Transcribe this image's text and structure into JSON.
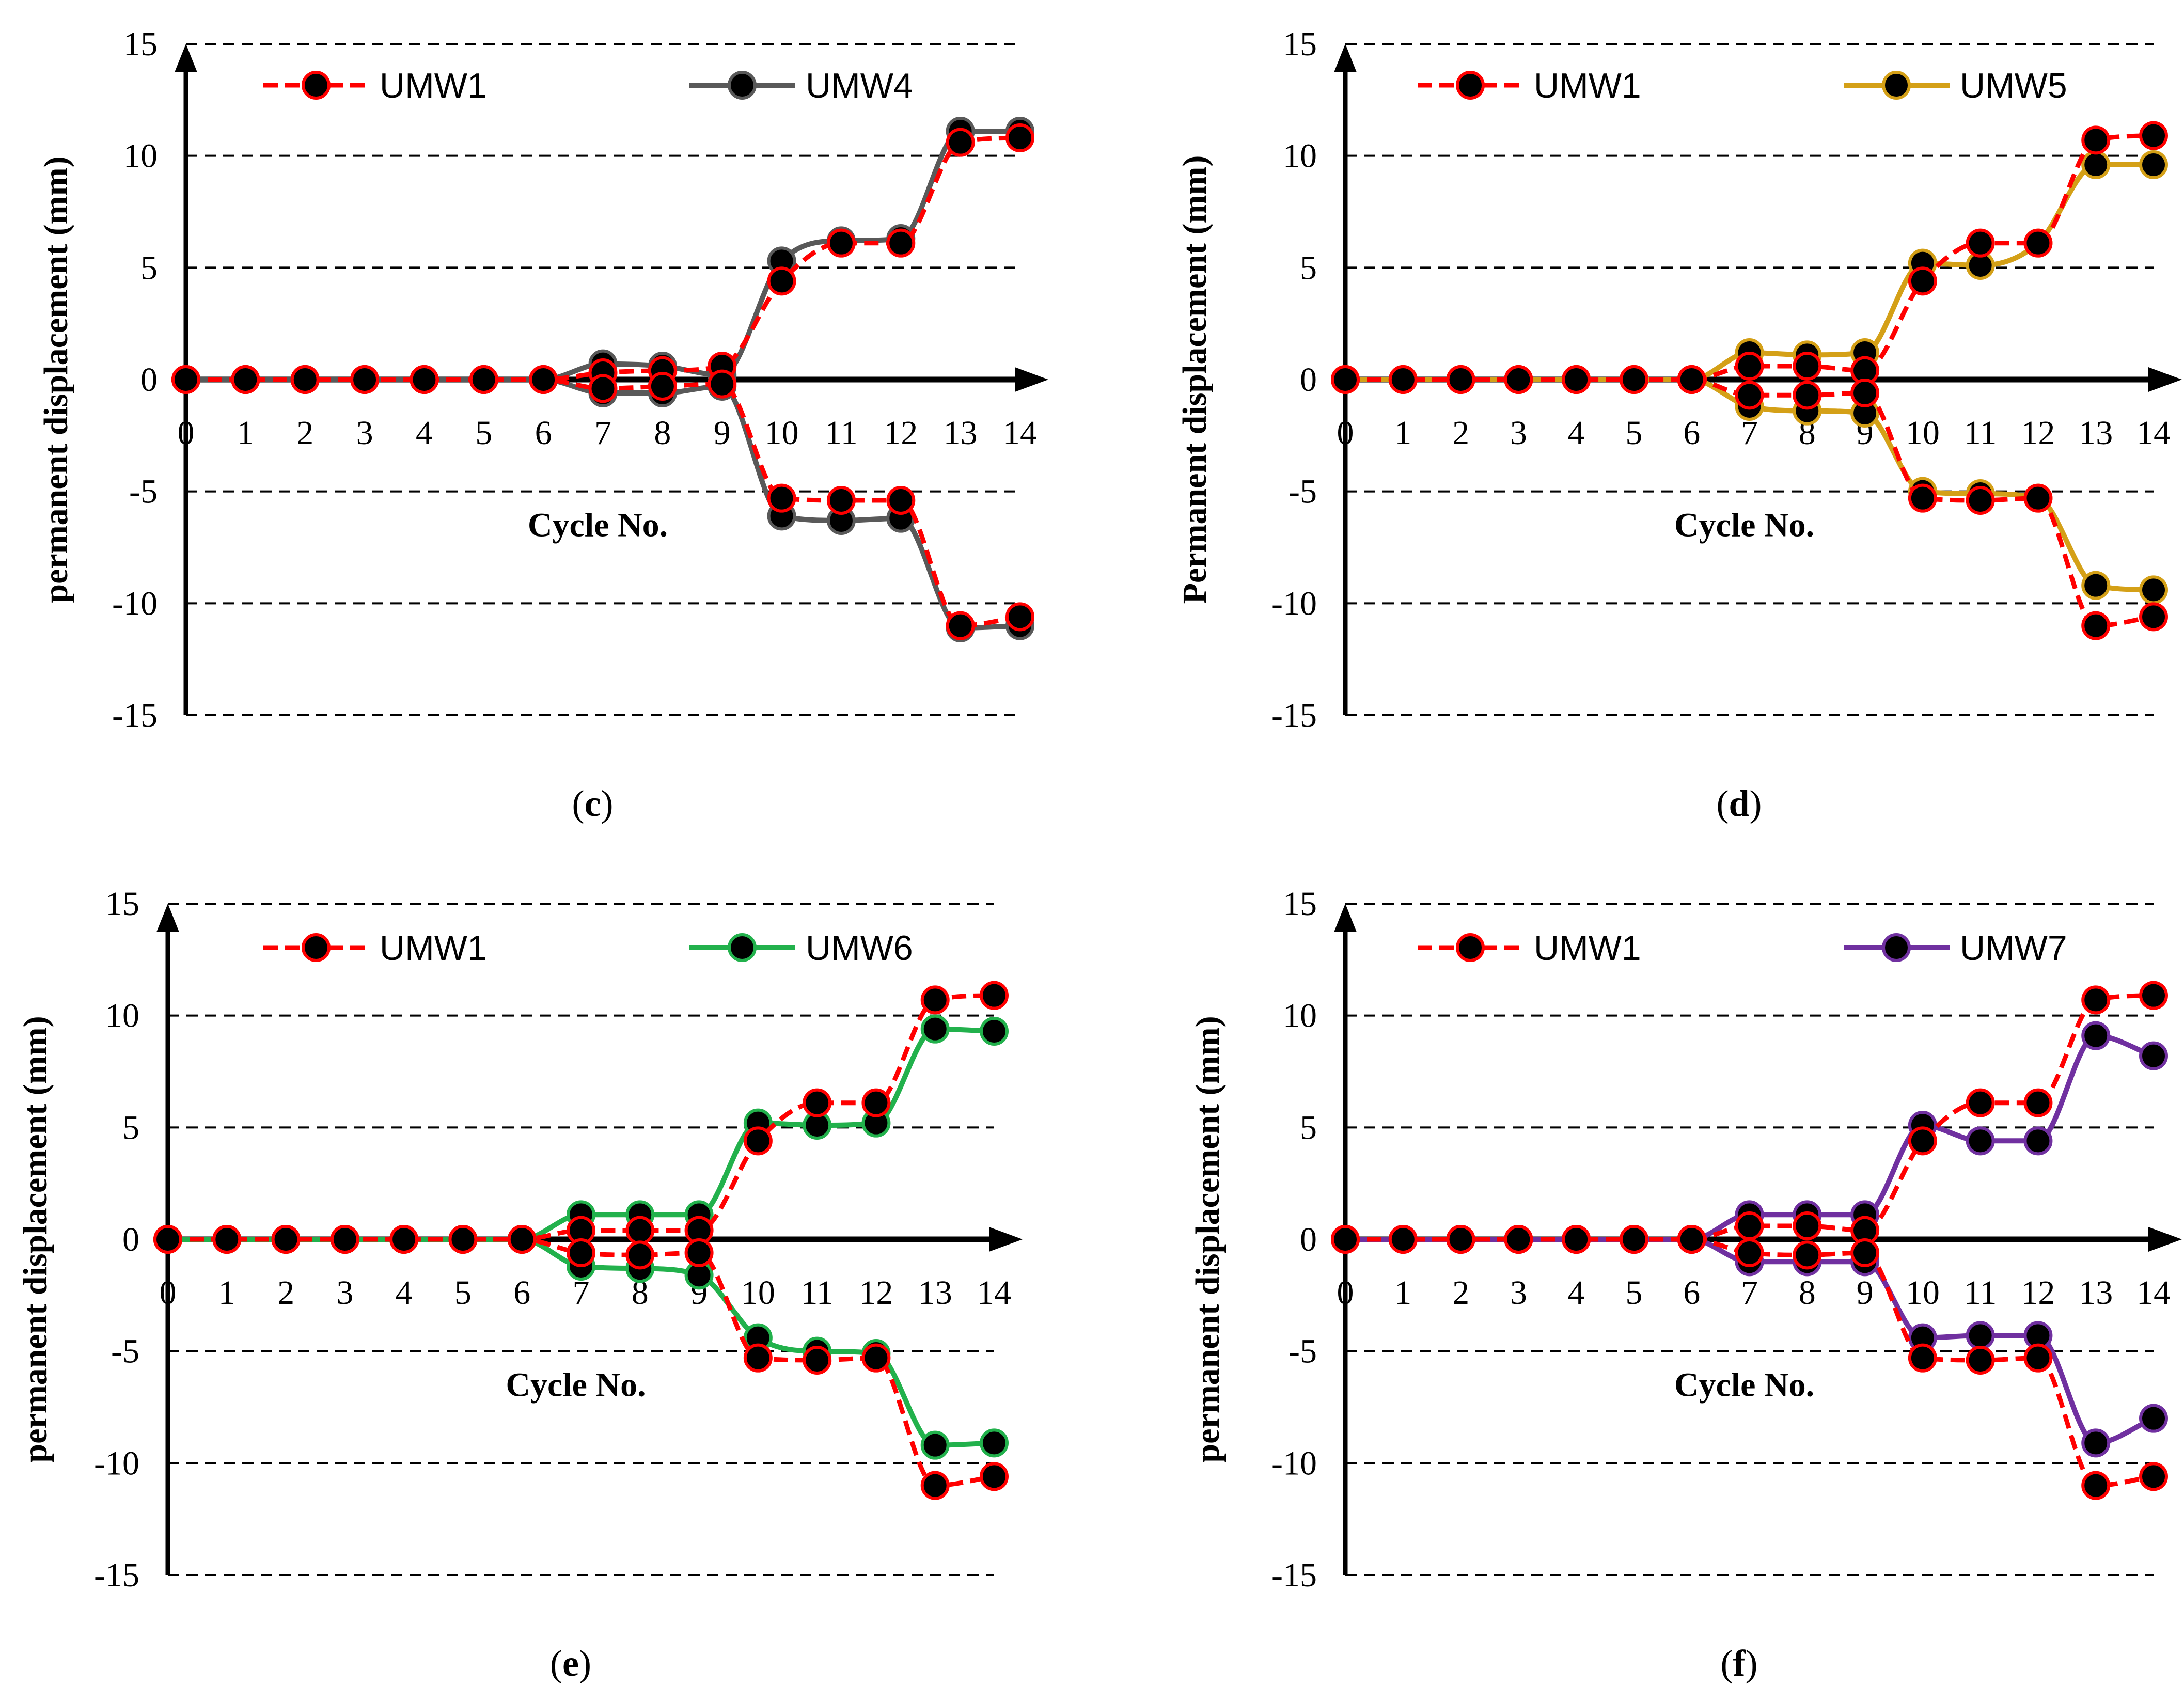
{
  "figure": {
    "panel_labels": [
      {
        "open": "(",
        "letter": "c",
        "close": ")"
      },
      {
        "open": "(",
        "letter": "d",
        "close": ")"
      },
      {
        "open": "(",
        "letter": "e",
        "close": ")"
      },
      {
        "open": "(",
        "letter": "f",
        "close": ")"
      }
    ]
  },
  "chart_data": [
    {
      "type": "line",
      "panel": "c",
      "xlabel": "Cycle No.",
      "ylabel": "permanent displacement (mm)",
      "xlim": [
        0,
        14
      ],
      "ylim": [
        -15,
        15
      ],
      "xticks": [
        0,
        1,
        2,
        3,
        4,
        5,
        6,
        7,
        8,
        9,
        10,
        11,
        12,
        13,
        14
      ],
      "yticks": [
        15,
        10,
        5,
        0,
        -5,
        -10,
        -15
      ],
      "grid": "horizontal-dashed",
      "legend": "top-left",
      "x": [
        0,
        1,
        2,
        3,
        4,
        5,
        6,
        7,
        8,
        9,
        10,
        11,
        12,
        13,
        14
      ],
      "series": [
        {
          "name": "UMW1",
          "style": "dashed",
          "color": "#ff0000",
          "marker_color": "#000000",
          "upper": [
            0,
            0,
            0,
            0,
            0,
            0,
            0,
            0.3,
            0.4,
            0.6,
            4.4,
            6.1,
            6.1,
            10.6,
            10.8
          ],
          "lower": [
            0,
            0,
            0,
            0,
            0,
            0,
            0,
            -0.4,
            -0.3,
            -0.2,
            -5.3,
            -5.4,
            -5.4,
            -11,
            -10.6
          ]
        },
        {
          "name": "UMW4",
          "style": "solid",
          "color": "#595959",
          "marker_color": "#000000",
          "upper": [
            0,
            0,
            0,
            0,
            0,
            0,
            0,
            0.7,
            0.6,
            0.2,
            5.3,
            6.2,
            6.3,
            11.1,
            11.1
          ],
          "lower": [
            0,
            0,
            0,
            0,
            0,
            0,
            0,
            -0.6,
            -0.6,
            -0.3,
            -6.1,
            -6.3,
            -6.2,
            -11.1,
            -11
          ]
        }
      ]
    },
    {
      "type": "line",
      "panel": "d",
      "xlabel": "Cycle No.",
      "ylabel": "Permanent displacement (mm)",
      "xlim": [
        0,
        14
      ],
      "ylim": [
        -15,
        15
      ],
      "xticks": [
        0,
        1,
        2,
        3,
        4,
        5,
        6,
        7,
        8,
        9,
        10,
        11,
        12,
        13,
        14
      ],
      "yticks": [
        15,
        10,
        5,
        0,
        -5,
        -10,
        -15
      ],
      "grid": "horizontal-dashed",
      "legend": "top-left",
      "x": [
        0,
        1,
        2,
        3,
        4,
        5,
        6,
        7,
        8,
        9,
        10,
        11,
        12,
        13,
        14
      ],
      "series": [
        {
          "name": "UMW1",
          "style": "dashed",
          "color": "#ff0000",
          "marker_color": "#000000",
          "upper": [
            0,
            0,
            0,
            0,
            0,
            0,
            0,
            0.6,
            0.6,
            0.4,
            4.4,
            6.1,
            6.1,
            10.7,
            10.9
          ],
          "lower": [
            0,
            0,
            0,
            0,
            0,
            0,
            0,
            -0.7,
            -0.7,
            -0.6,
            -5.3,
            -5.4,
            -5.3,
            -11,
            -10.6
          ]
        },
        {
          "name": "UMW5",
          "style": "solid",
          "color": "#d4a017",
          "marker_color": "#000000",
          "upper": [
            0,
            0,
            0,
            0,
            0,
            0,
            0,
            1.2,
            1.1,
            1.2,
            5.2,
            5.1,
            6.1,
            9.6,
            9.6
          ],
          "lower": [
            0,
            0,
            0,
            0,
            0,
            0,
            0,
            -1.2,
            -1.4,
            -1.5,
            -5,
            -5.1,
            -5.3,
            -9.2,
            -9.4
          ]
        }
      ]
    },
    {
      "type": "line",
      "panel": "e",
      "xlabel": "Cycle No.",
      "ylabel": "permanent displacement (mm)",
      "xlim": [
        0,
        14
      ],
      "ylim": [
        -15,
        15
      ],
      "xticks": [
        0,
        1,
        2,
        3,
        4,
        5,
        6,
        7,
        8,
        9,
        10,
        11,
        12,
        13,
        14
      ],
      "yticks": [
        15,
        10,
        5,
        0,
        -5,
        -10,
        -15
      ],
      "grid": "horizontal-dashed",
      "legend": "top-left",
      "x": [
        0,
        1,
        2,
        3,
        4,
        5,
        6,
        7,
        8,
        9,
        10,
        11,
        12,
        13,
        14
      ],
      "series": [
        {
          "name": "UMW1",
          "style": "dashed",
          "color": "#ff0000",
          "marker_color": "#000000",
          "upper": [
            0,
            0,
            0,
            0,
            0,
            0,
            0,
            0.4,
            0.4,
            0.4,
            4.4,
            6.1,
            6.1,
            10.7,
            10.9
          ],
          "lower": [
            0,
            0,
            0,
            0,
            0,
            0,
            0,
            -0.6,
            -0.7,
            -0.6,
            -5.3,
            -5.4,
            -5.3,
            -11,
            -10.6
          ]
        },
        {
          "name": "UMW6",
          "style": "solid",
          "color": "#22b14c",
          "marker_color": "#000000",
          "upper": [
            0,
            0,
            0,
            0,
            0,
            0,
            0,
            1.1,
            1.1,
            1.1,
            5.2,
            5.1,
            5.2,
            9.4,
            9.3
          ],
          "lower": [
            0,
            0,
            0,
            0,
            0,
            0,
            0,
            -1.2,
            -1.3,
            -1.6,
            -4.4,
            -5,
            -5.1,
            -9.2,
            -9.1
          ]
        }
      ]
    },
    {
      "type": "line",
      "panel": "f",
      "xlabel": "Cycle No.",
      "ylabel": "permanent displacement (mm)",
      "xlim": [
        0,
        14
      ],
      "ylim": [
        -15,
        15
      ],
      "xticks": [
        0,
        1,
        2,
        3,
        4,
        5,
        6,
        7,
        8,
        9,
        10,
        11,
        12,
        13,
        14
      ],
      "yticks": [
        15,
        10,
        5,
        0,
        -5,
        -10,
        -15
      ],
      "grid": "horizontal-dashed",
      "legend": "top-left",
      "x": [
        0,
        1,
        2,
        3,
        4,
        5,
        6,
        7,
        8,
        9,
        10,
        11,
        12,
        13,
        14
      ],
      "series": [
        {
          "name": "UMW1",
          "style": "dashed",
          "color": "#ff0000",
          "marker_color": "#000000",
          "upper": [
            0,
            0,
            0,
            0,
            0,
            0,
            0,
            0.6,
            0.6,
            0.4,
            4.4,
            6.1,
            6.1,
            10.7,
            10.9
          ],
          "lower": [
            0,
            0,
            0,
            0,
            0,
            0,
            0,
            -0.6,
            -0.7,
            -0.6,
            -5.3,
            -5.4,
            -5.3,
            -11,
            -10.6
          ]
        },
        {
          "name": "UMW7",
          "style": "solid",
          "color": "#7030a0",
          "marker_color": "#000000",
          "upper": [
            0,
            0,
            0,
            0,
            0,
            0,
            0,
            1.1,
            1.1,
            1.1,
            5.1,
            4.4,
            4.4,
            9.1,
            8.2
          ],
          "lower": [
            0,
            0,
            0,
            0,
            0,
            0,
            0,
            -1,
            -1,
            -1,
            -4.4,
            -4.3,
            -4.3,
            -9.1,
            -8
          ]
        }
      ]
    }
  ]
}
